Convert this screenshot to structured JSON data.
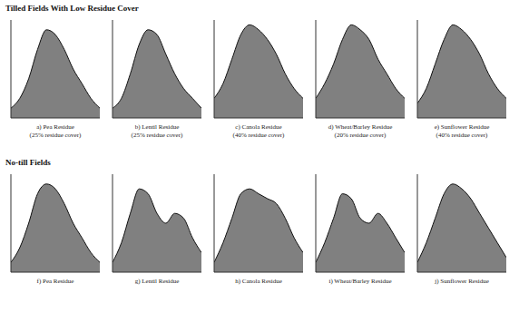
{
  "headings": [
    "Tilled Fields With Low Residue Cover",
    "No-till Fields"
  ],
  "chart_data": [
    {
      "type": "area",
      "title": "a) Pea Residue (25% residue cover)",
      "x": [
        0,
        1,
        2,
        3,
        4,
        5,
        6,
        7,
        8,
        9,
        10
      ],
      "values": [
        0.1,
        0.2,
        0.4,
        0.7,
        0.9,
        0.85,
        0.7,
        0.5,
        0.35,
        0.2,
        0.1
      ],
      "color": "#555555",
      "xlim": [
        0,
        10
      ],
      "ylim": [
        0,
        1
      ],
      "tick_labels": false
    },
    {
      "type": "area",
      "title": "b) Lentil Residue (25% residue cover)",
      "x": [
        0,
        1,
        2,
        3,
        4,
        5,
        6,
        7,
        8,
        9,
        10
      ],
      "values": [
        0.1,
        0.2,
        0.45,
        0.75,
        0.9,
        0.85,
        0.65,
        0.45,
        0.3,
        0.2,
        0.1
      ],
      "color": "#555555",
      "xlim": [
        0,
        10
      ],
      "ylim": [
        0,
        1
      ],
      "tick_labels": false
    },
    {
      "type": "area",
      "title": "c) Canola Residue (40% residue cover)",
      "x": [
        0,
        1,
        2,
        3,
        4,
        5,
        6,
        7,
        8,
        9,
        10
      ],
      "values": [
        0.2,
        0.35,
        0.6,
        0.85,
        0.95,
        0.9,
        0.8,
        0.65,
        0.45,
        0.3,
        0.2
      ],
      "color": "#555555",
      "xlim": [
        0,
        10
      ],
      "ylim": [
        0,
        1
      ],
      "tick_labels": false
    },
    {
      "type": "area",
      "title": "d) Wheat/Barley Residue (20% residue cover)",
      "x": [
        0,
        1,
        2,
        3,
        4,
        5,
        6,
        7,
        8,
        9,
        10
      ],
      "values": [
        0.2,
        0.35,
        0.55,
        0.8,
        0.95,
        0.9,
        0.8,
        0.6,
        0.45,
        0.3,
        0.2
      ],
      "color": "#555555",
      "xlim": [
        0,
        10
      ],
      "ylim": [
        0,
        1
      ],
      "tick_labels": false
    },
    {
      "type": "area",
      "title": "e) Sunflower Residue (40% residue cover)",
      "x": [
        0,
        1,
        2,
        3,
        4,
        5,
        6,
        7,
        8,
        9,
        10
      ],
      "values": [
        0.15,
        0.3,
        0.55,
        0.8,
        0.95,
        0.9,
        0.8,
        0.65,
        0.45,
        0.3,
        0.2
      ],
      "color": "#555555",
      "xlim": [
        0,
        10
      ],
      "ylim": [
        0,
        1
      ],
      "tick_labels": false
    },
    {
      "type": "area",
      "title": "f) Pea Residue",
      "x": [
        0,
        1,
        2,
        3,
        4,
        5,
        6,
        7,
        8,
        9,
        10
      ],
      "values": [
        0.1,
        0.25,
        0.5,
        0.8,
        0.9,
        0.85,
        0.7,
        0.5,
        0.35,
        0.2,
        0.1
      ],
      "color": "#555555",
      "xlim": [
        0,
        10
      ],
      "ylim": [
        0,
        1
      ],
      "tick_labels": false
    },
    {
      "type": "area",
      "title": "g) Lentil Residue",
      "x": [
        0,
        1,
        2,
        3,
        4,
        5,
        6,
        7,
        8,
        9,
        10
      ],
      "values": [
        0.1,
        0.3,
        0.6,
        0.85,
        0.8,
        0.6,
        0.5,
        0.6,
        0.55,
        0.35,
        0.2
      ],
      "color": "#555555",
      "xlim": [
        0,
        10
      ],
      "ylim": [
        0,
        1
      ],
      "tick_labels": false
    },
    {
      "type": "area",
      "title": "h) Canola Residue",
      "x": [
        0,
        1,
        2,
        3,
        4,
        5,
        6,
        7,
        8,
        9,
        10
      ],
      "values": [
        0.1,
        0.3,
        0.55,
        0.8,
        0.85,
        0.8,
        0.75,
        0.7,
        0.55,
        0.35,
        0.2
      ],
      "color": "#555555",
      "xlim": [
        0,
        10
      ],
      "ylim": [
        0,
        1
      ],
      "tick_labels": false
    },
    {
      "type": "area",
      "title": "i) Wheat/Barley Residue",
      "x": [
        0,
        1,
        2,
        3,
        4,
        5,
        6,
        7,
        8,
        9,
        10
      ],
      "values": [
        0.1,
        0.3,
        0.55,
        0.8,
        0.75,
        0.55,
        0.5,
        0.6,
        0.5,
        0.35,
        0.2
      ],
      "color": "#555555",
      "xlim": [
        0,
        10
      ],
      "ylim": [
        0,
        1
      ],
      "tick_labels": false
    },
    {
      "type": "area",
      "title": "j) Sunflower Residue",
      "x": [
        0,
        1,
        2,
        3,
        4,
        5,
        6,
        7,
        8,
        9,
        10
      ],
      "values": [
        0.1,
        0.3,
        0.55,
        0.8,
        0.9,
        0.85,
        0.75,
        0.6,
        0.45,
        0.3,
        0.15
      ],
      "color": "#555555",
      "xlim": [
        0,
        10
      ],
      "ylim": [
        0,
        1
      ],
      "tick_labels": false
    }
  ]
}
